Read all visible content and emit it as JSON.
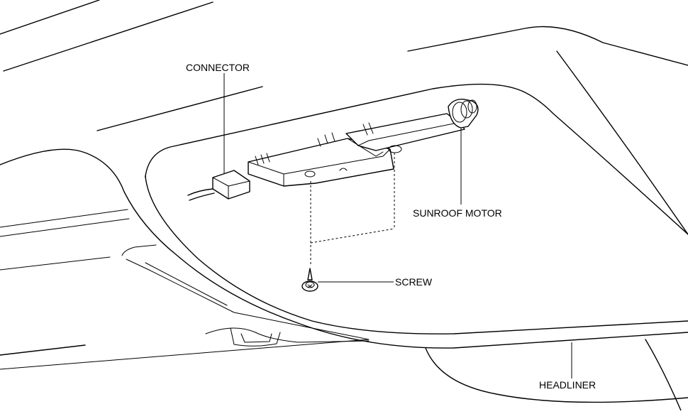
{
  "labels": {
    "connector": "CONNECTOR",
    "sunroof_motor": "SUNROOF MOTOR",
    "screw": "SCREW",
    "headliner": "HEADLINER"
  }
}
